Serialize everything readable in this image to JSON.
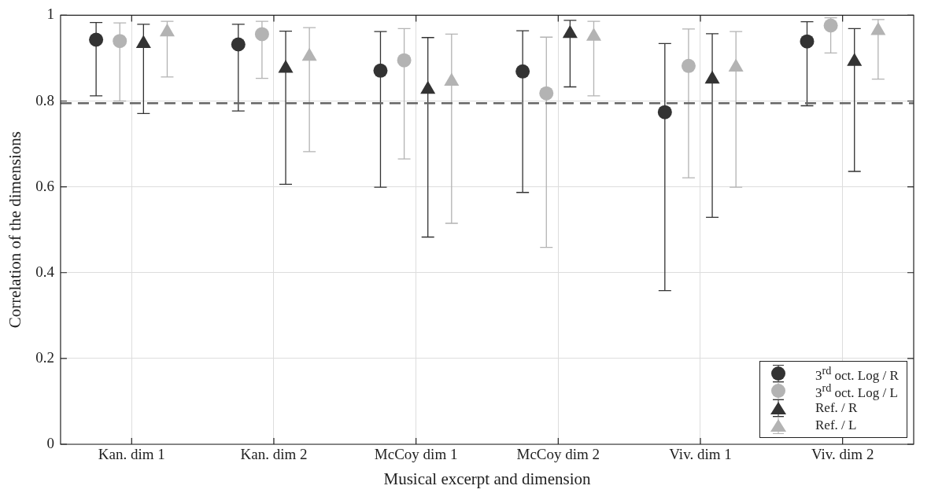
{
  "chart_data": {
    "type": "scatter",
    "xlabel": "Musical excerpt and dimension",
    "ylabel": "Correlation of the dimensions",
    "categories": [
      "Kan. dim 1",
      "Kan. dim 2",
      "McCoy dim 1",
      "McCoy dim 2",
      "Viv. dim 1",
      "Viv. dim 2"
    ],
    "ylim": [
      0,
      1
    ],
    "yticks": [
      0,
      0.2,
      0.4,
      0.6,
      0.8,
      1
    ],
    "grid": true,
    "legend": "bottom right",
    "series": [
      {
        "name": "3$^{rd}$ oct. Log / R",
        "color": "#333333",
        "marker": "circle",
        "values": [
          0.943,
          0.932,
          0.871,
          0.869,
          0.774,
          0.939
        ],
        "errors": [
          [
            0.812,
            0.983
          ],
          [
            0.777,
            0.979
          ],
          [
            0.599,
            0.962
          ],
          [
            0.587,
            0.964
          ],
          [
            0.358,
            0.934
          ],
          [
            0.789,
            0.985
          ]
        ]
      },
      {
        "name": "3$^{rd}$ oct. Log / L",
        "color": "#b3b3b3",
        "marker": "circle",
        "values": [
          0.94,
          0.956,
          0.895,
          0.818,
          0.882,
          0.976
        ],
        "errors": [
          [
            0.8,
            0.982
          ],
          [
            0.853,
            0.986
          ],
          [
            0.665,
            0.969
          ],
          [
            0.459,
            0.949
          ],
          [
            0.621,
            0.968
          ],
          [
            0.912,
            0.994
          ]
        ]
      },
      {
        "name": "Ref. / R",
        "color": "#333333",
        "marker": "triangle",
        "values": [
          0.934,
          0.876,
          0.827,
          0.957,
          0.851,
          0.892
        ],
        "errors": [
          [
            0.771,
            0.979
          ],
          [
            0.606,
            0.963
          ],
          [
            0.483,
            0.948
          ],
          [
            0.833,
            0.988
          ],
          [
            0.529,
            0.957
          ],
          [
            0.636,
            0.969
          ]
        ]
      },
      {
        "name": "Ref. / L",
        "color": "#b3b3b3",
        "marker": "triangle",
        "values": [
          0.961,
          0.904,
          0.846,
          0.951,
          0.879,
          0.964
        ],
        "errors": [
          [
            0.856,
            0.986
          ],
          [
            0.682,
            0.971
          ],
          [
            0.515,
            0.956
          ],
          [
            0.812,
            0.986
          ],
          [
            0.599,
            0.962
          ],
          [
            0.851,
            0.99
          ]
        ]
      }
    ],
    "ref_lines": [
      {
        "axis": "y",
        "value": 0.795,
        "color": "#666666",
        "line_style": "dashed"
      }
    ]
  }
}
